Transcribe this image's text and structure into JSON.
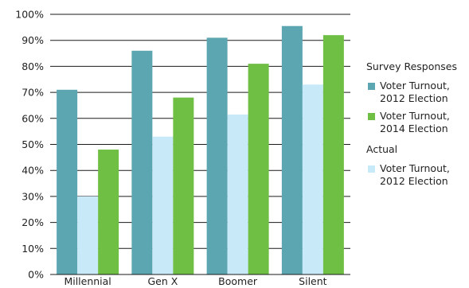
{
  "chart_data": {
    "type": "bar",
    "categories": [
      "Millennial",
      "Gen X",
      "Boomer",
      "Silent"
    ],
    "series": [
      {
        "name": "Voter Turnout, 2012 Election",
        "group": "Survey Responses",
        "color": "#5ba6b1",
        "values": [
          71,
          86,
          91,
          95.5
        ]
      },
      {
        "name": "Voter Turnout, 2012 Election",
        "group": "Actual",
        "color": "#c8e9f8",
        "values": [
          30,
          53,
          61.5,
          73
        ]
      },
      {
        "name": "Voter Turnout, 2014 Election",
        "group": "Survey Responses",
        "color": "#70bf45",
        "values": [
          48,
          68,
          81,
          92
        ]
      }
    ],
    "yticks": [
      "0%",
      "10%",
      "20%",
      "30%",
      "40%",
      "50%",
      "60%",
      "70%",
      "80%",
      "90%",
      "100%"
    ],
    "ylim": [
      0,
      100
    ],
    "grid": true,
    "legend_position": "right"
  },
  "legend": {
    "group1": "Survey Responses",
    "group2": "Actual",
    "items": [
      {
        "label": "Voter Turnout,\n2012 Election",
        "color": "#5ba6b1"
      },
      {
        "label": "Voter Turnout,\n2014 Election",
        "color": "#70bf45"
      },
      {
        "label": "Voter Turnout,\n2012 Election",
        "color": "#c8e9f8"
      }
    ]
  }
}
